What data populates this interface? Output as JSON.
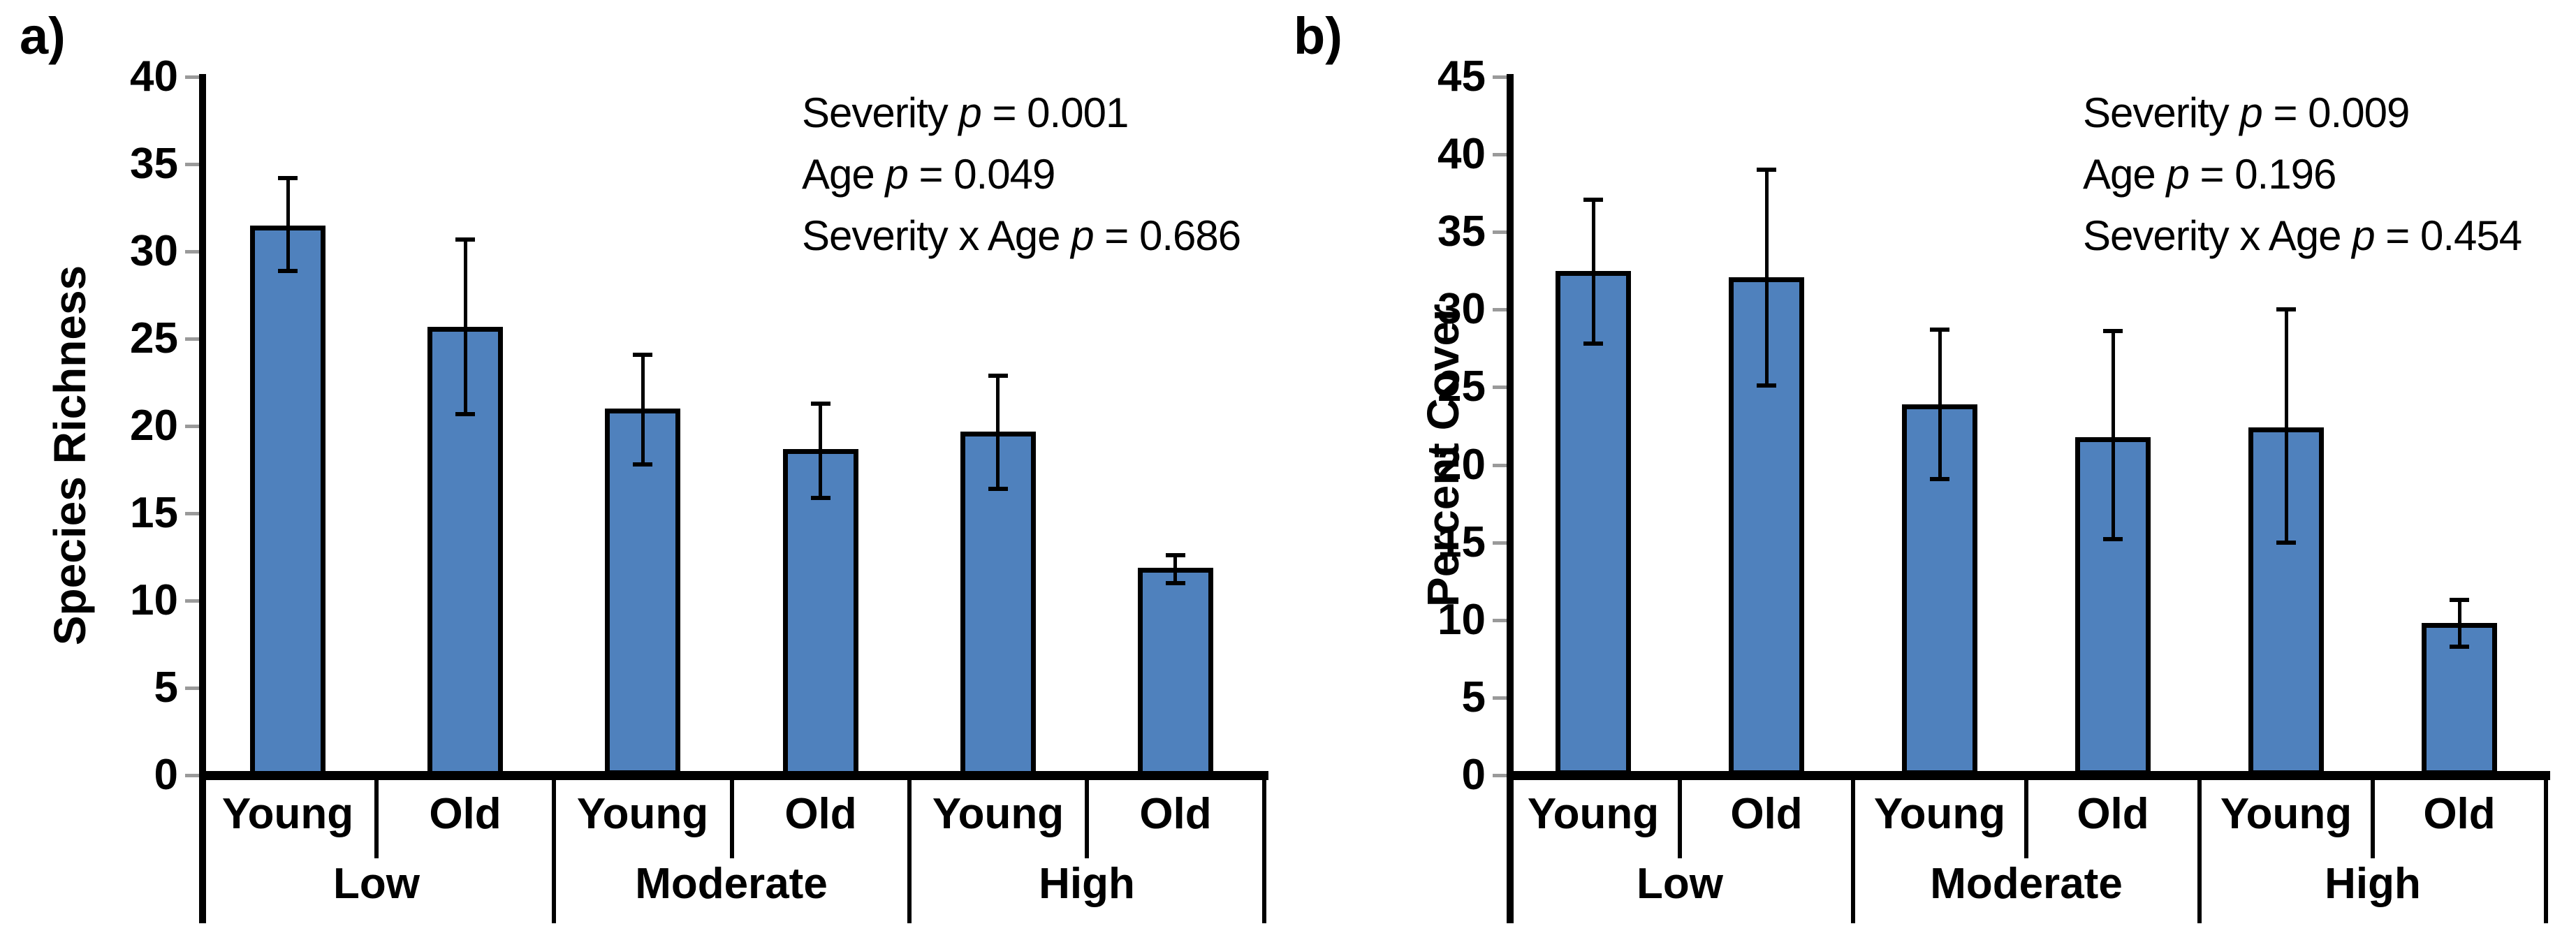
{
  "figure": {
    "bar_fill": "#4F81BD",
    "bar_border": "#000000",
    "error_color": "#000000",
    "axis_color": "#000000",
    "tick_mark_color": "#9a9a9a",
    "text_color": "#000000",
    "background": "#ffffff"
  },
  "chart_data": [
    {
      "type": "bar",
      "panel_label": "a)",
      "title": "",
      "xlabel": "",
      "ylabel": "Species Richness",
      "ylim": [
        0,
        40
      ],
      "yticks": [
        0,
        5,
        10,
        15,
        20,
        25,
        30,
        35,
        40
      ],
      "grid": false,
      "legend": false,
      "group_labels": [
        "Low",
        "Moderate",
        "High"
      ],
      "categories": [
        "Young",
        "Old",
        "Young",
        "Old",
        "Young",
        "Old"
      ],
      "values": [
        31.5,
        25.7,
        21.0,
        18.7,
        19.7,
        11.9
      ],
      "error_upper": [
        34.2,
        30.7,
        24.1,
        21.3,
        22.9,
        12.6
      ],
      "error_lower": [
        28.9,
        20.7,
        17.8,
        15.9,
        16.4,
        11.0
      ],
      "annotations": [
        {
          "text_before": "Severity",
          "p_symbol": "p",
          "text_after": "= 0.001"
        },
        {
          "text_before": "Age",
          "p_symbol": "p",
          "text_after": "= 0.049"
        },
        {
          "text_before": "Severity x Age",
          "p_symbol": "p",
          "text_after": "= 0.686"
        }
      ]
    },
    {
      "type": "bar",
      "panel_label": "b)",
      "title": "",
      "xlabel": "",
      "ylabel": "Percent Cover",
      "ylim": [
        0,
        45
      ],
      "yticks": [
        0,
        5,
        10,
        15,
        20,
        25,
        30,
        35,
        40,
        45
      ],
      "grid": false,
      "legend": false,
      "group_labels": [
        "Low",
        "Moderate",
        "High"
      ],
      "categories": [
        "Young",
        "Old",
        "Young",
        "Old",
        "Young",
        "Old"
      ],
      "values": [
        32.5,
        32.1,
        23.9,
        21.8,
        22.4,
        9.8
      ],
      "error_upper": [
        37.1,
        39.0,
        28.7,
        28.6,
        30.0,
        11.3
      ],
      "error_lower": [
        27.8,
        25.1,
        19.1,
        15.2,
        15.0,
        8.3
      ],
      "annotations": [
        {
          "text_before": "Severity",
          "p_symbol": "p",
          "text_after": "= 0.009"
        },
        {
          "text_before": "Age",
          "p_symbol": "p",
          "text_after": "= 0.196"
        },
        {
          "text_before": "Severity x Age",
          "p_symbol": "p",
          "text_after": "= 0.454"
        }
      ]
    }
  ]
}
